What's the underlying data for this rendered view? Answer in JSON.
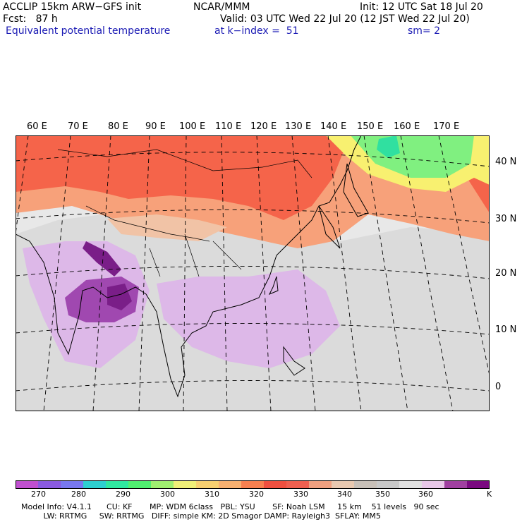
{
  "header": {
    "model": "ACCLIP 15km ARW−GFS init",
    "org": "NCAR/MMM",
    "init": "Init: 12 UTC Sat 18 Jul 20",
    "forecast": "Fcst:   87 h",
    "valid": "Valid: 03 UTC Wed 22 Jul 20 (12 JST Wed 22 Jul 20)",
    "field": "Equivalent potential temperature",
    "level": "at k−index =  51",
    "smoothing": "sm= 2"
  },
  "map": {
    "lon_labels": [
      "60 E",
      "70 E",
      "80 E",
      "90 E",
      "100 E",
      "110 E",
      "120 E",
      "130 E",
      "140 E",
      "150 E",
      "160 E",
      "170 E"
    ],
    "lat_labels": [
      "40 N",
      "30 N",
      "20 N",
      "10 N",
      "0"
    ],
    "colors": {
      "warm_band": "#f5644a",
      "warm_light": "#f7a17a",
      "peach": "#f1c3a6",
      "neutral_gray": "#cfcfcf",
      "light_gray": "#e8e8e8",
      "lavender": "#ddb8e8",
      "purple": "#a048b0",
      "dark_purple": "#7a1e88",
      "green": "#80f080",
      "teal": "#30e0a0",
      "yellow": "#f8f070",
      "coast": "#000000",
      "grid": "#000000"
    }
  },
  "colorbar": {
    "colors": [
      "#c050d0",
      "#8a5ae0",
      "#7878f0",
      "#2ed0d0",
      "#30e8a0",
      "#50f070",
      "#a0f070",
      "#f0f078",
      "#f8d070",
      "#f8b070",
      "#f88050",
      "#f05040",
      "#f06050",
      "#f0a080",
      "#e8c8b0",
      "#c8c0b8",
      "#c8c8c8",
      "#e0e0e0",
      "#e8c8e8",
      "#a040a0",
      "#7a0a80"
    ],
    "tick_labels": [
      "270",
      "280",
      "290",
      "300",
      "310",
      "320",
      "330",
      "340",
      "350",
      "360"
    ],
    "unit": "K"
  },
  "footer": {
    "line1": "Model Info: V4.1.1      CU: KF       MP: WDM 6class   PBL: YSU       SF: Noah LSM     15 km    51 levels   90 sec",
    "line2": "         LW: RRTMG     SW: RRTMG   DIFF: simple KM: 2D Smagor DAMP: Rayleigh3  SFLAY: MM5"
  }
}
